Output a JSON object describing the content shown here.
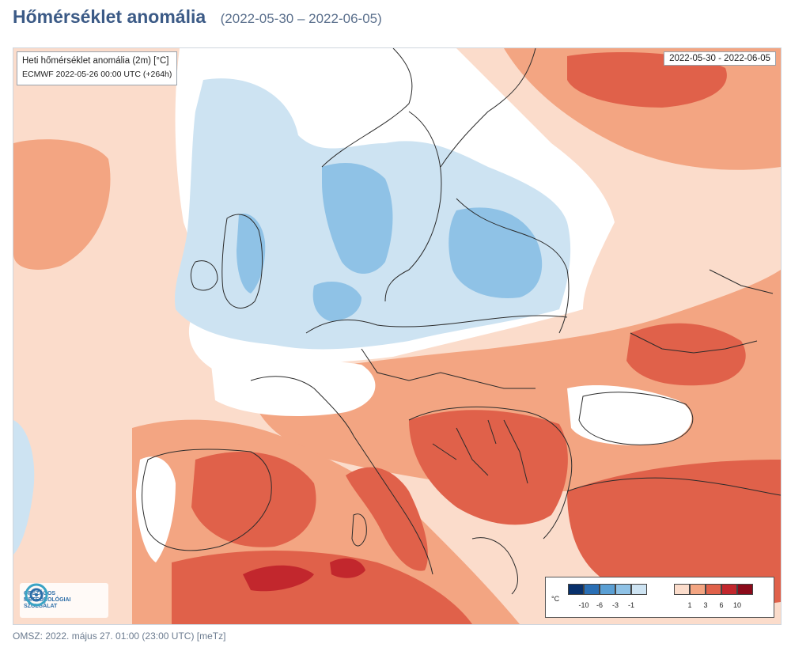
{
  "header": {
    "title": "Hőmérséklet anomália",
    "date_range": "(2022-05-30 – 2022-06-05)"
  },
  "map": {
    "info_line1": "Heti hőmérséklet anomália (2m) [°C]",
    "info_line2": "ECMWF 2022-05-26 00:00 UTC (+264h)",
    "date_label": "2022-05-30 - 2022-06-05",
    "logo_lines": [
      "ORSZÁGOS",
      "METEOROLÓGIAI",
      "SZOLGÁLAT"
    ]
  },
  "legend": {
    "unit": "°C",
    "negative_colors": [
      "#08306b",
      "#2a6fb5",
      "#5a9fd4",
      "#8fc2e6",
      "#cde3f2"
    ],
    "positive_colors": [
      "#fbdccb",
      "#f3a582",
      "#e0614a",
      "#c2272d",
      "#8b0a1a"
    ],
    "negative_ticks": [
      "-10",
      "-6",
      "-3",
      "-1"
    ],
    "positive_ticks": [
      "1",
      "3",
      "6",
      "10"
    ]
  },
  "colors": {
    "neutral": "#ffffff",
    "light_blue": "#cde3f2",
    "mid_blue": "#8fc2e6",
    "light_orange": "#fbdccb",
    "orange": "#f3a582",
    "red": "#e0614a",
    "dark_red": "#c2272d",
    "title": "#3b5a86"
  },
  "footer": {
    "text": "OMSZ: 2022. május 27. 01:00 (23:00  UTC)  [meTz]"
  }
}
